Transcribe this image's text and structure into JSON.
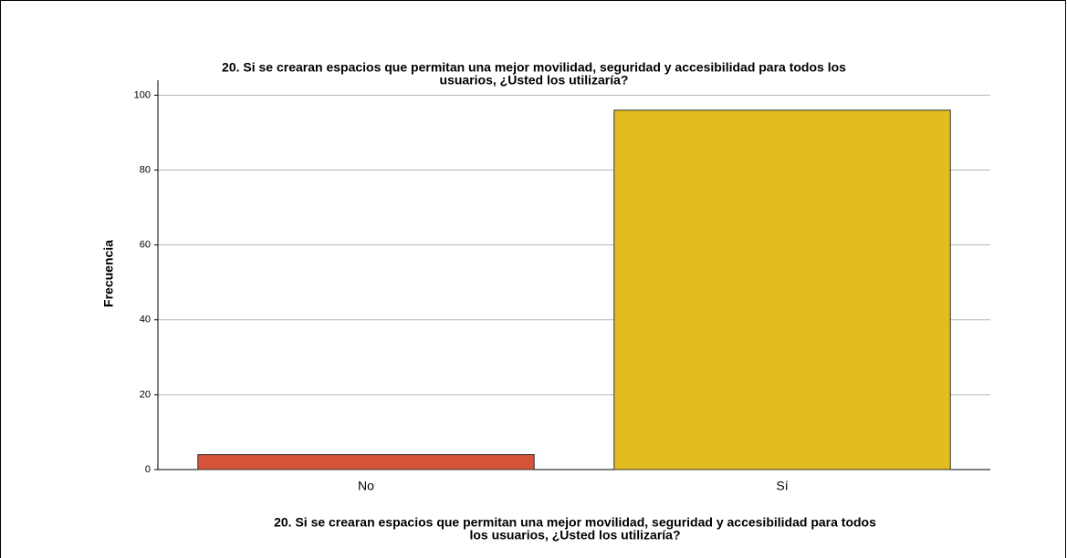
{
  "chart_data": {
    "type": "bar",
    "title": [
      "20. Si se crearan espacios que permitan una mejor movilidad, seguridad y accesibilidad para todos los",
      "usuarios, ¿Usted los utilizaría?"
    ],
    "xlabel": [
      "20. Si se crearan espacios que permitan una mejor movilidad, seguridad y accesibilidad para todos",
      "los usuarios, ¿Usted los utilizaría?"
    ],
    "ylabel": "Frecuencia",
    "categories": [
      "No",
      "Sí"
    ],
    "values": [
      4,
      96
    ],
    "colors": [
      "#d6553a",
      "#e2bd20"
    ],
    "ylim": [
      0,
      104
    ],
    "yticks": [
      0,
      20,
      40,
      60,
      80,
      100
    ],
    "grid": true
  }
}
